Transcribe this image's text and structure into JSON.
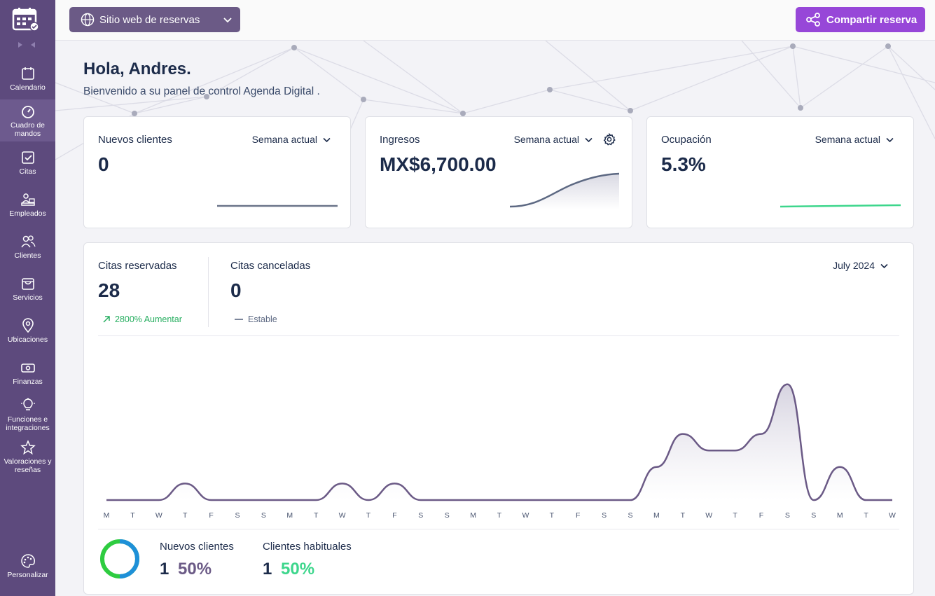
{
  "sidebar": {
    "items": [
      {
        "label": "Calendario",
        "icon": "calendar-icon"
      },
      {
        "label": "Cuadro de mandos",
        "icon": "dashboard-gauge-icon"
      },
      {
        "label": "Citas",
        "icon": "checkbox-icon"
      },
      {
        "label": "Empleados",
        "icon": "employee-desk-icon"
      },
      {
        "label": "Clientes",
        "icon": "users-icon"
      },
      {
        "label": "Servicios",
        "icon": "shopping-bag-icon"
      },
      {
        "label": "Ubicaciones",
        "icon": "location-pin-icon"
      },
      {
        "label": "Finanzas",
        "icon": "banknote-icon"
      },
      {
        "label": "Funciones e integraciones",
        "icon": "lightbulb-icon"
      },
      {
        "label": "Valoraciones y reseñas",
        "icon": "star-icon"
      }
    ],
    "bottom": {
      "label": "Personalizar",
      "icon": "palette-icon"
    }
  },
  "topbar": {
    "site_select": "Sitio web de reservas",
    "share_button": "Compartir reserva"
  },
  "greeting": {
    "title": "Hola, Andres.",
    "subtitle": "Bienvenido a su panel de control Agenda Digital ."
  },
  "cards": {
    "new_clients": {
      "title": "Nuevos clientes",
      "period": "Semana actual",
      "value": "0"
    },
    "revenue": {
      "title": "Ingresos",
      "period": "Semana actual",
      "value": "MX$6,700.00"
    },
    "occupancy": {
      "title": "Ocupación",
      "period": "Semana actual",
      "value": "5.3%"
    }
  },
  "appointments": {
    "booked": {
      "title": "Citas reservadas",
      "value": "28",
      "trend": "2800% Aumentar"
    },
    "cancelled": {
      "title": "Citas canceladas",
      "value": "0",
      "trend": "Estable"
    },
    "month": "July 2024"
  },
  "clients_split": {
    "new": {
      "title": "Nuevos clientes",
      "count": "1",
      "percent": "50%"
    },
    "returning": {
      "title": "Clientes habituales",
      "count": "1",
      "percent": "50%"
    }
  },
  "colors": {
    "sidebar": "#5d4a7d",
    "accent": "#9747d8",
    "line": "#6b5a86",
    "green": "#3dd68c",
    "up": "#27ae60",
    "donut_blue": "#1e90d8",
    "donut_green": "#2ecc40"
  },
  "chart_data": {
    "type": "area",
    "categories": [
      "M",
      "T",
      "W",
      "T",
      "F",
      "S",
      "S",
      "M",
      "T",
      "W",
      "T",
      "F",
      "S",
      "S",
      "M",
      "T",
      "W",
      "T",
      "F",
      "S",
      "S",
      "M",
      "T",
      "W",
      "T",
      "F",
      "S",
      "S",
      "M",
      "T",
      "W"
    ],
    "values": [
      0,
      0,
      0,
      1,
      0,
      0,
      0,
      0,
      0,
      1,
      0,
      1,
      0,
      0,
      0,
      0,
      0,
      0,
      0,
      0,
      0,
      2,
      4,
      3,
      3,
      4,
      7,
      0,
      2,
      0,
      0
    ],
    "ylim": [
      0,
      7.5
    ],
    "grid": false
  }
}
